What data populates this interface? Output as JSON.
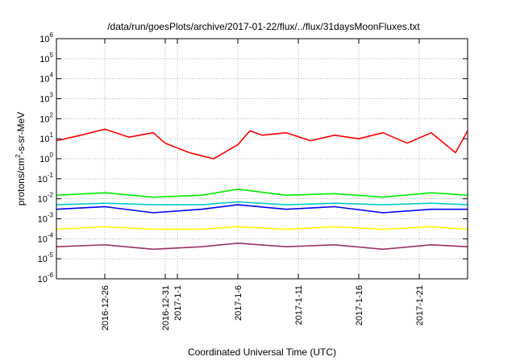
{
  "chart_data": {
    "type": "line",
    "title": "/data/run/goesPlots/archive/2017-01-22/flux/../flux/31daysMoonFluxes.txt",
    "xlabel": "Coordinated Universal Time (UTC)",
    "ylabel": {
      "pre": "protons/cm",
      "sup": "2",
      "post": "-s-sr-MeV"
    },
    "yscale": "log",
    "ylim": [
      1e-06,
      1000000.0
    ],
    "xlim": [
      "2016-12-22",
      "2017-01-25"
    ],
    "grid": true,
    "y_ticks": [
      {
        "value": 1e-06,
        "base": "10",
        "exp": "-6"
      },
      {
        "value": 1e-05,
        "base": "10",
        "exp": "-5"
      },
      {
        "value": 0.0001,
        "base": "10",
        "exp": "-4"
      },
      {
        "value": 0.001,
        "base": "10",
        "exp": "-3"
      },
      {
        "value": 0.01,
        "base": "10",
        "exp": "-2"
      },
      {
        "value": 0.1,
        "base": "10",
        "exp": "-1"
      },
      {
        "value": 1,
        "base": "10",
        "exp": "0"
      },
      {
        "value": 10,
        "base": "10",
        "exp": "1"
      },
      {
        "value": 100,
        "base": "10",
        "exp": "2"
      },
      {
        "value": 1000,
        "base": "10",
        "exp": "3"
      },
      {
        "value": 10000,
        "base": "10",
        "exp": "4"
      },
      {
        "value": 100000,
        "base": "10",
        "exp": "5"
      },
      {
        "value": 1000000,
        "base": "10",
        "exp": "6"
      }
    ],
    "x_ticks": [
      {
        "date": "2016-12-26",
        "label": "2016-12-26"
      },
      {
        "date": "2016-12-31",
        "label": "2016-12-31"
      },
      {
        "date": "2017-01-01",
        "label": "2017-1-1"
      },
      {
        "date": "2017-01-06",
        "label": "2017-1-6"
      },
      {
        "date": "2017-01-11",
        "label": "2017-1-11"
      },
      {
        "date": "2017-01-16",
        "label": "2017-1-16"
      },
      {
        "date": "2017-01-21",
        "label": "2017-1-21"
      }
    ],
    "series": [
      {
        "color": "#ff0000",
        "x": [
          "2016-12-22",
          "2016-12-24",
          "2016-12-26",
          "2016-12-28",
          "2016-12-30",
          "2016-12-31",
          "2017-01-02",
          "2017-01-04",
          "2017-01-06",
          "2017-01-07",
          "2017-01-08",
          "2017-01-10",
          "2017-01-12",
          "2017-01-14",
          "2017-01-16",
          "2017-01-18",
          "2017-01-20",
          "2017-01-22",
          "2017-01-24",
          "2017-01-25"
        ],
        "y": [
          8,
          15,
          30,
          12,
          20,
          6,
          2,
          1,
          5,
          25,
          15,
          20,
          8,
          15,
          10,
          20,
          6,
          20,
          2,
          25
        ]
      },
      {
        "color": "#00ee00",
        "x": [
          "2016-12-22",
          "2016-12-26",
          "2016-12-30",
          "2017-01-03",
          "2017-01-06",
          "2017-01-10",
          "2017-01-14",
          "2017-01-18",
          "2017-01-22",
          "2017-01-25"
        ],
        "y": [
          0.015,
          0.02,
          0.012,
          0.015,
          0.03,
          0.015,
          0.018,
          0.012,
          0.02,
          0.015
        ]
      },
      {
        "color": "#00cccc",
        "x": [
          "2016-12-22",
          "2016-12-26",
          "2016-12-30",
          "2017-01-03",
          "2017-01-06",
          "2017-01-10",
          "2017-01-14",
          "2017-01-18",
          "2017-01-22",
          "2017-01-25"
        ],
        "y": [
          0.005,
          0.006,
          0.005,
          0.005,
          0.007,
          0.005,
          0.006,
          0.005,
          0.006,
          0.005
        ]
      },
      {
        "color": "#0000ff",
        "x": [
          "2016-12-22",
          "2016-12-26",
          "2016-12-30",
          "2017-01-03",
          "2017-01-06",
          "2017-01-10",
          "2017-01-14",
          "2017-01-18",
          "2017-01-22",
          "2017-01-25"
        ],
        "y": [
          0.003,
          0.004,
          0.002,
          0.003,
          0.005,
          0.003,
          0.004,
          0.002,
          0.003,
          0.003
        ]
      },
      {
        "color": "#ffff00",
        "x": [
          "2016-12-22",
          "2016-12-26",
          "2016-12-30",
          "2017-01-03",
          "2017-01-06",
          "2017-01-10",
          "2017-01-14",
          "2017-01-18",
          "2017-01-22",
          "2017-01-25"
        ],
        "y": [
          0.0003,
          0.0004,
          0.0003,
          0.0003,
          0.0004,
          0.0003,
          0.0004,
          0.0003,
          0.0004,
          0.0003
        ]
      },
      {
        "color": "#993366",
        "x": [
          "2016-12-22",
          "2016-12-26",
          "2016-12-30",
          "2017-01-03",
          "2017-01-06",
          "2017-01-10",
          "2017-01-14",
          "2017-01-18",
          "2017-01-22",
          "2017-01-25"
        ],
        "y": [
          4e-05,
          5e-05,
          3e-05,
          4e-05,
          6e-05,
          4e-05,
          5e-05,
          3e-05,
          5e-05,
          4e-05
        ]
      }
    ]
  }
}
